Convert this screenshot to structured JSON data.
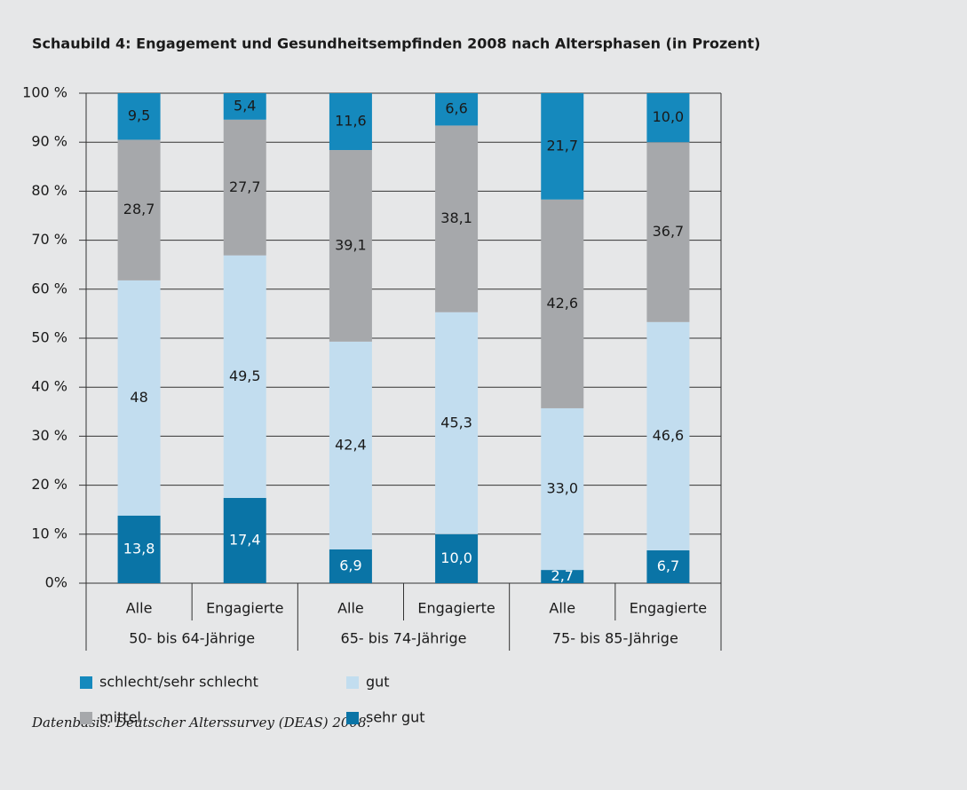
{
  "chart_data": {
    "type": "stacked_bar",
    "title": "Schaubild 4: Engagement und Gesundheitsempfinden 2008 nach Altersphasen (in Prozent)",
    "categories": [
      "Alle",
      "Engagierte",
      "Alle",
      "Engagierte",
      "Alle",
      "Engagierte"
    ],
    "groups": [
      "50- bis 64-Jährige",
      "65- bis 74-Jährige",
      "75- bis 85-Jährige"
    ],
    "series": [
      {
        "name": "sehr gut",
        "color": "#0a74a6",
        "values": [
          13.8,
          17.4,
          6.9,
          10.0,
          2.7,
          6.7
        ],
        "value_labels": [
          "13,8",
          "17,4",
          "6,9",
          "10,0",
          "2,7",
          "6,7"
        ]
      },
      {
        "name": "gut",
        "color": "#c2ddef",
        "values": [
          48,
          49.5,
          42.4,
          45.3,
          33.0,
          46.6
        ],
        "value_labels": [
          "48",
          "49,5",
          "42,4",
          "45,3",
          "33,0",
          "46,6"
        ]
      },
      {
        "name": "mittel",
        "color": "#a6a8ab",
        "values": [
          28.7,
          27.7,
          39.1,
          38.1,
          42.6,
          36.7
        ],
        "value_labels": [
          "28,7",
          "27,7",
          "39,1",
          "38,1",
          "42,6",
          "36,7"
        ]
      },
      {
        "name": "schlecht/sehr schlecht",
        "color": "#1589bd",
        "values": [
          9.5,
          5.4,
          11.6,
          6.6,
          21.7,
          10.0
        ],
        "value_labels": [
          "9,5",
          "5,4",
          "11,6",
          "6,6",
          "21,7",
          "10,0"
        ]
      }
    ],
    "ylim": [
      0,
      100
    ],
    "yticks": [
      {
        "value": 0,
        "label": "0%"
      },
      {
        "value": 10,
        "label": "10 %"
      },
      {
        "value": 20,
        "label": "20 %"
      },
      {
        "value": 30,
        "label": "30 %"
      },
      {
        "value": 40,
        "label": "40 %"
      },
      {
        "value": 50,
        "label": "50 %"
      },
      {
        "value": 60,
        "label": "60 %"
      },
      {
        "value": 70,
        "label": "70 %"
      },
      {
        "value": 80,
        "label": "80 %"
      },
      {
        "value": 90,
        "label": "90 %"
      },
      {
        "value": 100,
        "label": "100 %"
      }
    ],
    "grid": true,
    "note": "Datenbasis: Deutscher Alterssurvey (DEAS) 2008."
  }
}
